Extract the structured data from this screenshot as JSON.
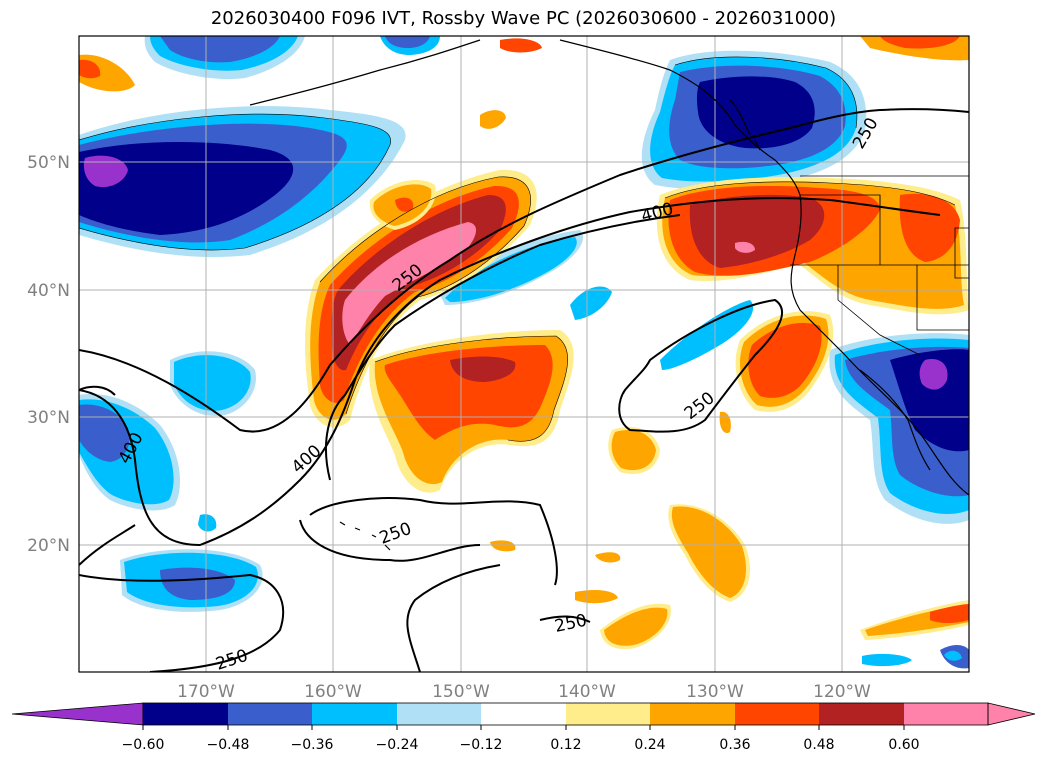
{
  "title": "2026030400 F096 IVT, Rossby Wave PC (2026030600 - 2026031000)",
  "map": {
    "lat_ticks": [
      "50°N",
      "40°N",
      "30°N",
      "20°N"
    ],
    "lon_ticks": [
      "170°W",
      "160°W",
      "150°W",
      "140°W",
      "130°W",
      "120°W"
    ],
    "contour_labels": [
      "250",
      "400",
      "400",
      "400",
      "250",
      "250",
      "250",
      "250",
      "250"
    ],
    "contour_levels_ivt": [
      250,
      400
    ]
  },
  "colorbar": {
    "levels": [
      "−0.60",
      "−0.48",
      "−0.36",
      "−0.24",
      "−0.12",
      "0.12",
      "0.24",
      "0.36",
      "0.48",
      "0.60"
    ],
    "colors": [
      "#9932cc",
      "#00008b",
      "#3a5fcd",
      "#00bfff",
      "#b0e0f5",
      "#ffffff",
      "#ffec8b",
      "#ffa500",
      "#ff4500",
      "#b22222",
      "#ff82ab"
    ]
  }
}
